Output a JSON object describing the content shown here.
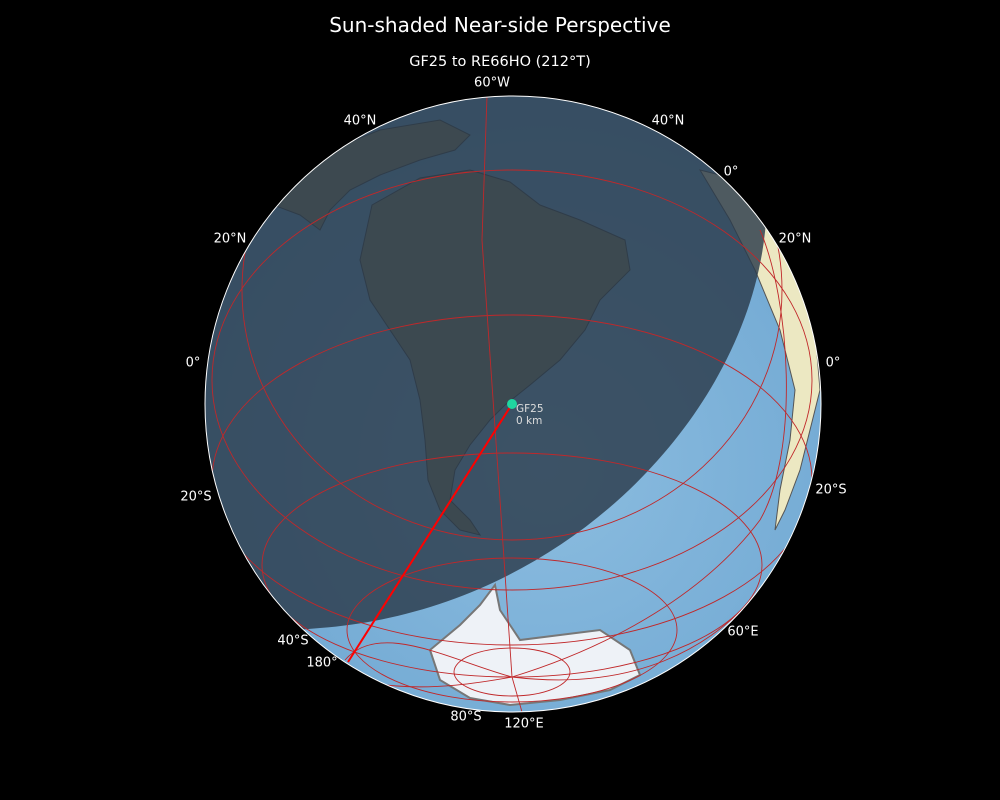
{
  "title": "Sun-shaded Near-side Perspective",
  "subtitle": "GF25 to RE66HO (212°T)",
  "graticule_labels": {
    "top": "60°W",
    "nw40": "40°N",
    "ne40": "40°N",
    "ne0lon": "0°",
    "w20n": "20°N",
    "e20n": "20°N",
    "w0": "0°",
    "e0": "0°",
    "w20s": "20°S",
    "e20s": "20°S",
    "w40s": "40°S",
    "e60e": "60°E",
    "w180": "180°",
    "s80s": "80°S",
    "s120e": "120°E"
  },
  "marker": {
    "label": "GF25",
    "distance": "0 km",
    "color": "#1fd6a0"
  },
  "colors": {
    "route": "#ff0000",
    "graticule": "#c0282a",
    "ocean": "#7fb3d9",
    "night": "#2b3a4a",
    "land": "#8a8a6a",
    "ice": "#eef2f7"
  }
}
